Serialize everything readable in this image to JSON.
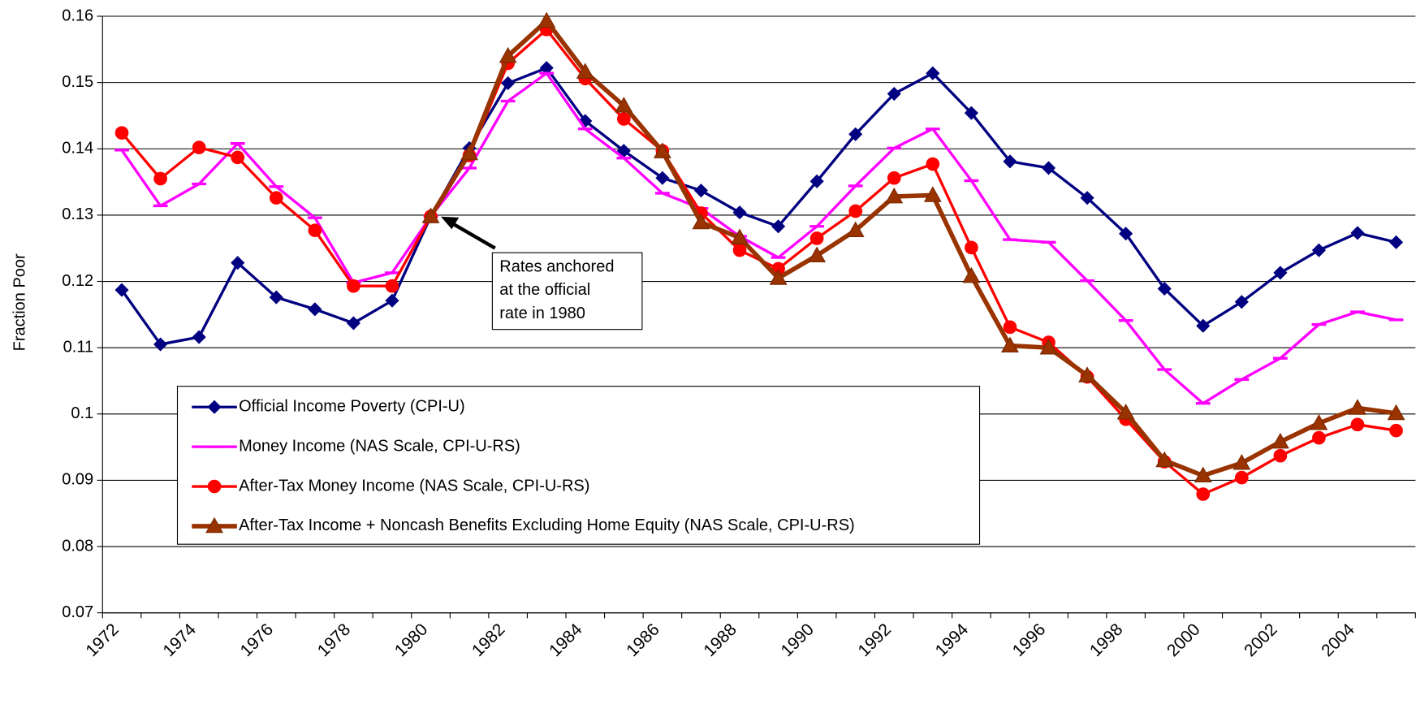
{
  "chart_data": {
    "type": "line",
    "ylabel": "Fraction Poor",
    "categories": [
      "1972",
      null,
      "1974",
      null,
      "1976",
      null,
      "1978",
      null,
      "1980",
      null,
      "1982",
      null,
      "1984",
      null,
      "1986",
      null,
      "1988",
      null,
      "1990",
      null,
      "1992",
      null,
      "1994",
      null,
      "1996",
      null,
      "1998",
      null,
      "2000",
      null,
      "2002",
      null,
      "2004",
      null
    ],
    "ylim": [
      0.07,
      0.16
    ],
    "yticks": [
      0.07,
      0.08,
      0.09,
      0.1,
      0.11,
      0.12,
      0.13,
      0.14,
      0.15,
      0.16
    ],
    "grid": true,
    "annotation": [
      "Rates anchored",
      "at the official",
      "rate in 1980"
    ],
    "series": [
      {
        "name": "Official Income Poverty (CPI-U)",
        "color": "#000080",
        "marker": "diamond",
        "values": [
          0.1187,
          0.1105,
          0.1116,
          0.1228,
          0.1176,
          0.1158,
          0.1137,
          0.1171,
          0.1298,
          0.1401,
          0.1499,
          0.1522,
          0.1442,
          0.1397,
          0.1356,
          0.1337,
          0.1304,
          0.1283,
          0.1351,
          0.1422,
          0.1483,
          0.1514,
          0.1454,
          0.1381,
          0.1371,
          0.1326,
          0.1272,
          0.1189,
          0.1133,
          0.1169,
          0.1213,
          0.1247,
          0.1273,
          0.1259
        ]
      },
      {
        "name": "Money Income (NAS Scale, CPI-U-RS)",
        "color": "#ff00ff",
        "marker": "dash",
        "values": [
          0.1398,
          0.1314,
          0.1347,
          0.1408,
          0.1343,
          0.1296,
          0.1198,
          0.1213,
          0.1298,
          0.1371,
          0.1472,
          0.1514,
          0.143,
          0.1386,
          0.1333,
          0.131,
          0.1268,
          0.1236,
          0.1283,
          0.1344,
          0.1401,
          0.143,
          0.1352,
          0.1263,
          0.1259,
          0.1201,
          0.1141,
          0.1067,
          0.1016,
          0.1052,
          0.1084,
          0.1135,
          0.1154,
          0.1142
        ]
      },
      {
        "name": "After-Tax Money Income (NAS Scale, CPI-U-RS)",
        "color": "#ff0000",
        "marker": "circle",
        "values": [
          0.1424,
          0.1355,
          0.1402,
          0.1387,
          0.1326,
          0.1277,
          0.1193,
          0.1193,
          0.1298,
          0.139,
          0.1529,
          0.158,
          0.1506,
          0.1445,
          0.1397,
          0.1303,
          0.1247,
          0.1219,
          0.1265,
          0.1306,
          0.1356,
          0.1377,
          0.1251,
          0.1131,
          0.1108,
          0.1056,
          0.0992,
          0.0928,
          0.0879,
          0.0904,
          0.0937,
          0.0964,
          0.0984,
          0.0975
        ]
      },
      {
        "name": "After-Tax Income + Noncash Benefits Excluding Home Equity (NAS Scale, CPI-U-RS)",
        "color": "#993300",
        "marker": "triangle",
        "values": [
          null,
          null,
          null,
          null,
          null,
          null,
          null,
          null,
          0.1298,
          0.1393,
          0.154,
          0.1593,
          0.1516,
          0.1465,
          0.1396,
          0.1289,
          0.1266,
          0.1205,
          0.1239,
          0.1277,
          0.1328,
          0.133,
          0.1208,
          0.1103,
          0.11,
          0.1058,
          0.1002,
          0.093,
          0.0907,
          0.0926,
          0.0958,
          0.0986,
          0.1009,
          0.1001
        ]
      }
    ]
  }
}
